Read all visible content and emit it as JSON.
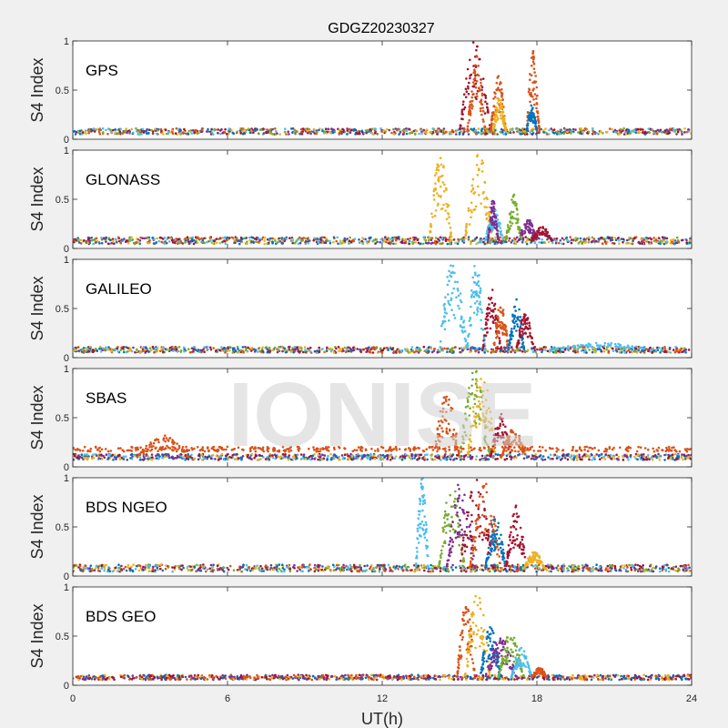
{
  "figure": {
    "title": "GDGZ20230327",
    "watermark": "IONISE",
    "xlabel": "UT(h)",
    "ylabel": "S4 Index"
  },
  "colors": {
    "c1": "#0072BD",
    "c2": "#D95319",
    "c3": "#EDB120",
    "c4": "#7E2F8E",
    "c5": "#77AC30",
    "c6": "#4DBEEE",
    "c7": "#A2142F",
    "axis": "#262626",
    "background": "#f0f0f0",
    "plot_background": "#ffffff"
  },
  "chart_data": [
    {
      "type": "scatter",
      "panel": "GPS",
      "label": "GPS",
      "xlim": [
        0,
        24
      ],
      "ylim": [
        0,
        1
      ],
      "xticks": [
        "0",
        "6",
        "12",
        "18",
        "24"
      ],
      "yticks": [
        "0",
        "0.5",
        "1"
      ],
      "grid": false,
      "baseline": 0.08,
      "baseline_spread": 0.03,
      "baseline_colors": [
        "c1",
        "c2",
        "c3",
        "c4",
        "c5",
        "c6",
        "c7"
      ],
      "events": [
        {
          "x_start": 15.0,
          "x_end": 16.2,
          "peak": 1.0,
          "color": "c7"
        },
        {
          "x_start": 15.3,
          "x_end": 16.0,
          "peak": 0.85,
          "color": "c2"
        },
        {
          "x_start": 16.2,
          "x_end": 16.8,
          "peak": 0.65,
          "color": "c2"
        },
        {
          "x_start": 16.3,
          "x_end": 16.8,
          "peak": 0.45,
          "color": "c3"
        },
        {
          "x_start": 17.6,
          "x_end": 18.1,
          "peak": 0.9,
          "color": "c2"
        },
        {
          "x_start": 17.6,
          "x_end": 18.0,
          "peak": 0.35,
          "color": "c1"
        }
      ]
    },
    {
      "type": "scatter",
      "panel": "GLONASS",
      "label": "GLONASS",
      "xlim": [
        0,
        24
      ],
      "ylim": [
        0,
        1
      ],
      "xticks": [
        "0",
        "6",
        "12",
        "18",
        "24"
      ],
      "yticks": [
        "0",
        "0.5",
        "1"
      ],
      "grid": false,
      "baseline": 0.08,
      "baseline_spread": 0.035,
      "baseline_colors": [
        "c1",
        "c2",
        "c3",
        "c4",
        "c5",
        "c6",
        "c7"
      ],
      "events": [
        {
          "x_start": 13.8,
          "x_end": 14.7,
          "peak": 0.95,
          "color": "c3"
        },
        {
          "x_start": 15.2,
          "x_end": 16.3,
          "peak": 1.0,
          "color": "c3"
        },
        {
          "x_start": 16.0,
          "x_end": 16.7,
          "peak": 0.4,
          "color": "c6"
        },
        {
          "x_start": 16.1,
          "x_end": 16.5,
          "peak": 0.5,
          "color": "c4"
        },
        {
          "x_start": 16.8,
          "x_end": 17.4,
          "peak": 0.55,
          "color": "c5"
        },
        {
          "x_start": 17.3,
          "x_end": 18.0,
          "peak": 0.3,
          "color": "c4"
        },
        {
          "x_start": 17.8,
          "x_end": 18.6,
          "peak": 0.22,
          "color": "c7"
        }
      ]
    },
    {
      "type": "scatter",
      "panel": "GALILEO",
      "label": "GALILEO",
      "xlim": [
        0,
        24
      ],
      "ylim": [
        0,
        1
      ],
      "xticks": [
        "0",
        "6",
        "12",
        "18",
        "24"
      ],
      "yticks": [
        "0",
        "0.5",
        "1"
      ],
      "grid": false,
      "baseline": 0.08,
      "baseline_spread": 0.03,
      "baseline_colors": [
        "c1",
        "c2",
        "c3",
        "c4",
        "c5",
        "c6",
        "c7"
      ],
      "events": [
        {
          "x_start": 14.2,
          "x_end": 15.3,
          "peak": 1.0,
          "color": "c6"
        },
        {
          "x_start": 15.3,
          "x_end": 16.0,
          "peak": 1.0,
          "color": "c6"
        },
        {
          "x_start": 15.9,
          "x_end": 16.6,
          "peak": 0.7,
          "color": "c7"
        },
        {
          "x_start": 16.3,
          "x_end": 16.9,
          "peak": 0.55,
          "color": "c2"
        },
        {
          "x_start": 16.9,
          "x_end": 17.5,
          "peak": 0.6,
          "color": "c1"
        },
        {
          "x_start": 17.2,
          "x_end": 17.9,
          "peak": 0.45,
          "color": "c7"
        },
        {
          "x_start": 18.5,
          "x_end": 22.5,
          "peak": 0.15,
          "color": "c6"
        }
      ]
    },
    {
      "type": "scatter",
      "panel": "SBAS",
      "label": "SBAS",
      "xlim": [
        0,
        24
      ],
      "ylim": [
        0,
        1
      ],
      "xticks": [
        "0",
        "6",
        "12",
        "18",
        "24"
      ],
      "yticks": [
        "0",
        "0.5",
        "1"
      ],
      "grid": false,
      "baseline": 0.1,
      "baseline_spread": 0.03,
      "baseline_colors": [
        "c1",
        "c4",
        "c6",
        "c7",
        "c3"
      ],
      "upper_band": {
        "level": 0.18,
        "spread": 0.025,
        "color": "c2"
      },
      "events": [
        {
          "x_start": 14.0,
          "x_end": 15.0,
          "peak": 0.75,
          "color": "c2"
        },
        {
          "x_start": 15.0,
          "x_end": 16.2,
          "peak": 1.0,
          "color": "c5"
        },
        {
          "x_start": 15.3,
          "x_end": 16.4,
          "peak": 1.0,
          "color": "c3"
        },
        {
          "x_start": 16.2,
          "x_end": 17.0,
          "peak": 0.55,
          "color": "c7"
        },
        {
          "x_start": 16.6,
          "x_end": 17.6,
          "peak": 0.4,
          "color": "c2"
        },
        {
          "x_start": 2.5,
          "x_end": 4.5,
          "peak": 0.32,
          "color": "c2"
        }
      ]
    },
    {
      "type": "scatter",
      "panel": "BDS NGEO",
      "label": "BDS NGEO",
      "xlim": [
        0,
        24
      ],
      "ylim": [
        0,
        1
      ],
      "xticks": [
        "0",
        "6",
        "12",
        "18",
        "24"
      ],
      "yticks": [
        "0",
        "0.5",
        "1"
      ],
      "grid": false,
      "baseline": 0.08,
      "baseline_spread": 0.035,
      "baseline_colors": [
        "c1",
        "c2",
        "c3",
        "c4",
        "c5",
        "c6",
        "c7"
      ],
      "events": [
        {
          "x_start": 13.3,
          "x_end": 13.8,
          "peak": 1.0,
          "color": "c6"
        },
        {
          "x_start": 14.2,
          "x_end": 15.2,
          "peak": 1.0,
          "color": "c5"
        },
        {
          "x_start": 14.5,
          "x_end": 15.6,
          "peak": 1.0,
          "color": "c4"
        },
        {
          "x_start": 15.0,
          "x_end": 16.3,
          "peak": 1.0,
          "color": "c7"
        },
        {
          "x_start": 15.4,
          "x_end": 16.6,
          "peak": 0.95,
          "color": "c2"
        },
        {
          "x_start": 16.0,
          "x_end": 16.8,
          "peak": 0.6,
          "color": "c1"
        },
        {
          "x_start": 16.8,
          "x_end": 17.6,
          "peak": 0.72,
          "color": "c7"
        },
        {
          "x_start": 17.5,
          "x_end": 18.3,
          "peak": 0.25,
          "color": "c3"
        }
      ]
    },
    {
      "type": "scatter",
      "panel": "BDS GEO",
      "label": "BDS GEO",
      "xlim": [
        0,
        24
      ],
      "ylim": [
        0,
        1
      ],
      "xticks": [
        "0",
        "6",
        "12",
        "18",
        "24"
      ],
      "yticks": [
        "0",
        "0.5",
        "1"
      ],
      "grid": false,
      "baseline": 0.08,
      "baseline_spread": 0.025,
      "baseline_colors": [
        "c4",
        "c3",
        "c2",
        "c1",
        "c7"
      ],
      "events": [
        {
          "x_start": 14.9,
          "x_end": 15.6,
          "peak": 0.85,
          "color": "c2"
        },
        {
          "x_start": 15.2,
          "x_end": 16.2,
          "peak": 0.95,
          "color": "c3"
        },
        {
          "x_start": 15.8,
          "x_end": 16.6,
          "peak": 0.6,
          "color": "c1"
        },
        {
          "x_start": 16.0,
          "x_end": 17.2,
          "peak": 0.5,
          "color": "c4"
        },
        {
          "x_start": 16.5,
          "x_end": 17.5,
          "peak": 0.55,
          "color": "c5"
        },
        {
          "x_start": 17.0,
          "x_end": 17.8,
          "peak": 0.4,
          "color": "c6"
        },
        {
          "x_start": 17.8,
          "x_end": 18.4,
          "peak": 0.18,
          "color": "c2"
        }
      ]
    }
  ]
}
